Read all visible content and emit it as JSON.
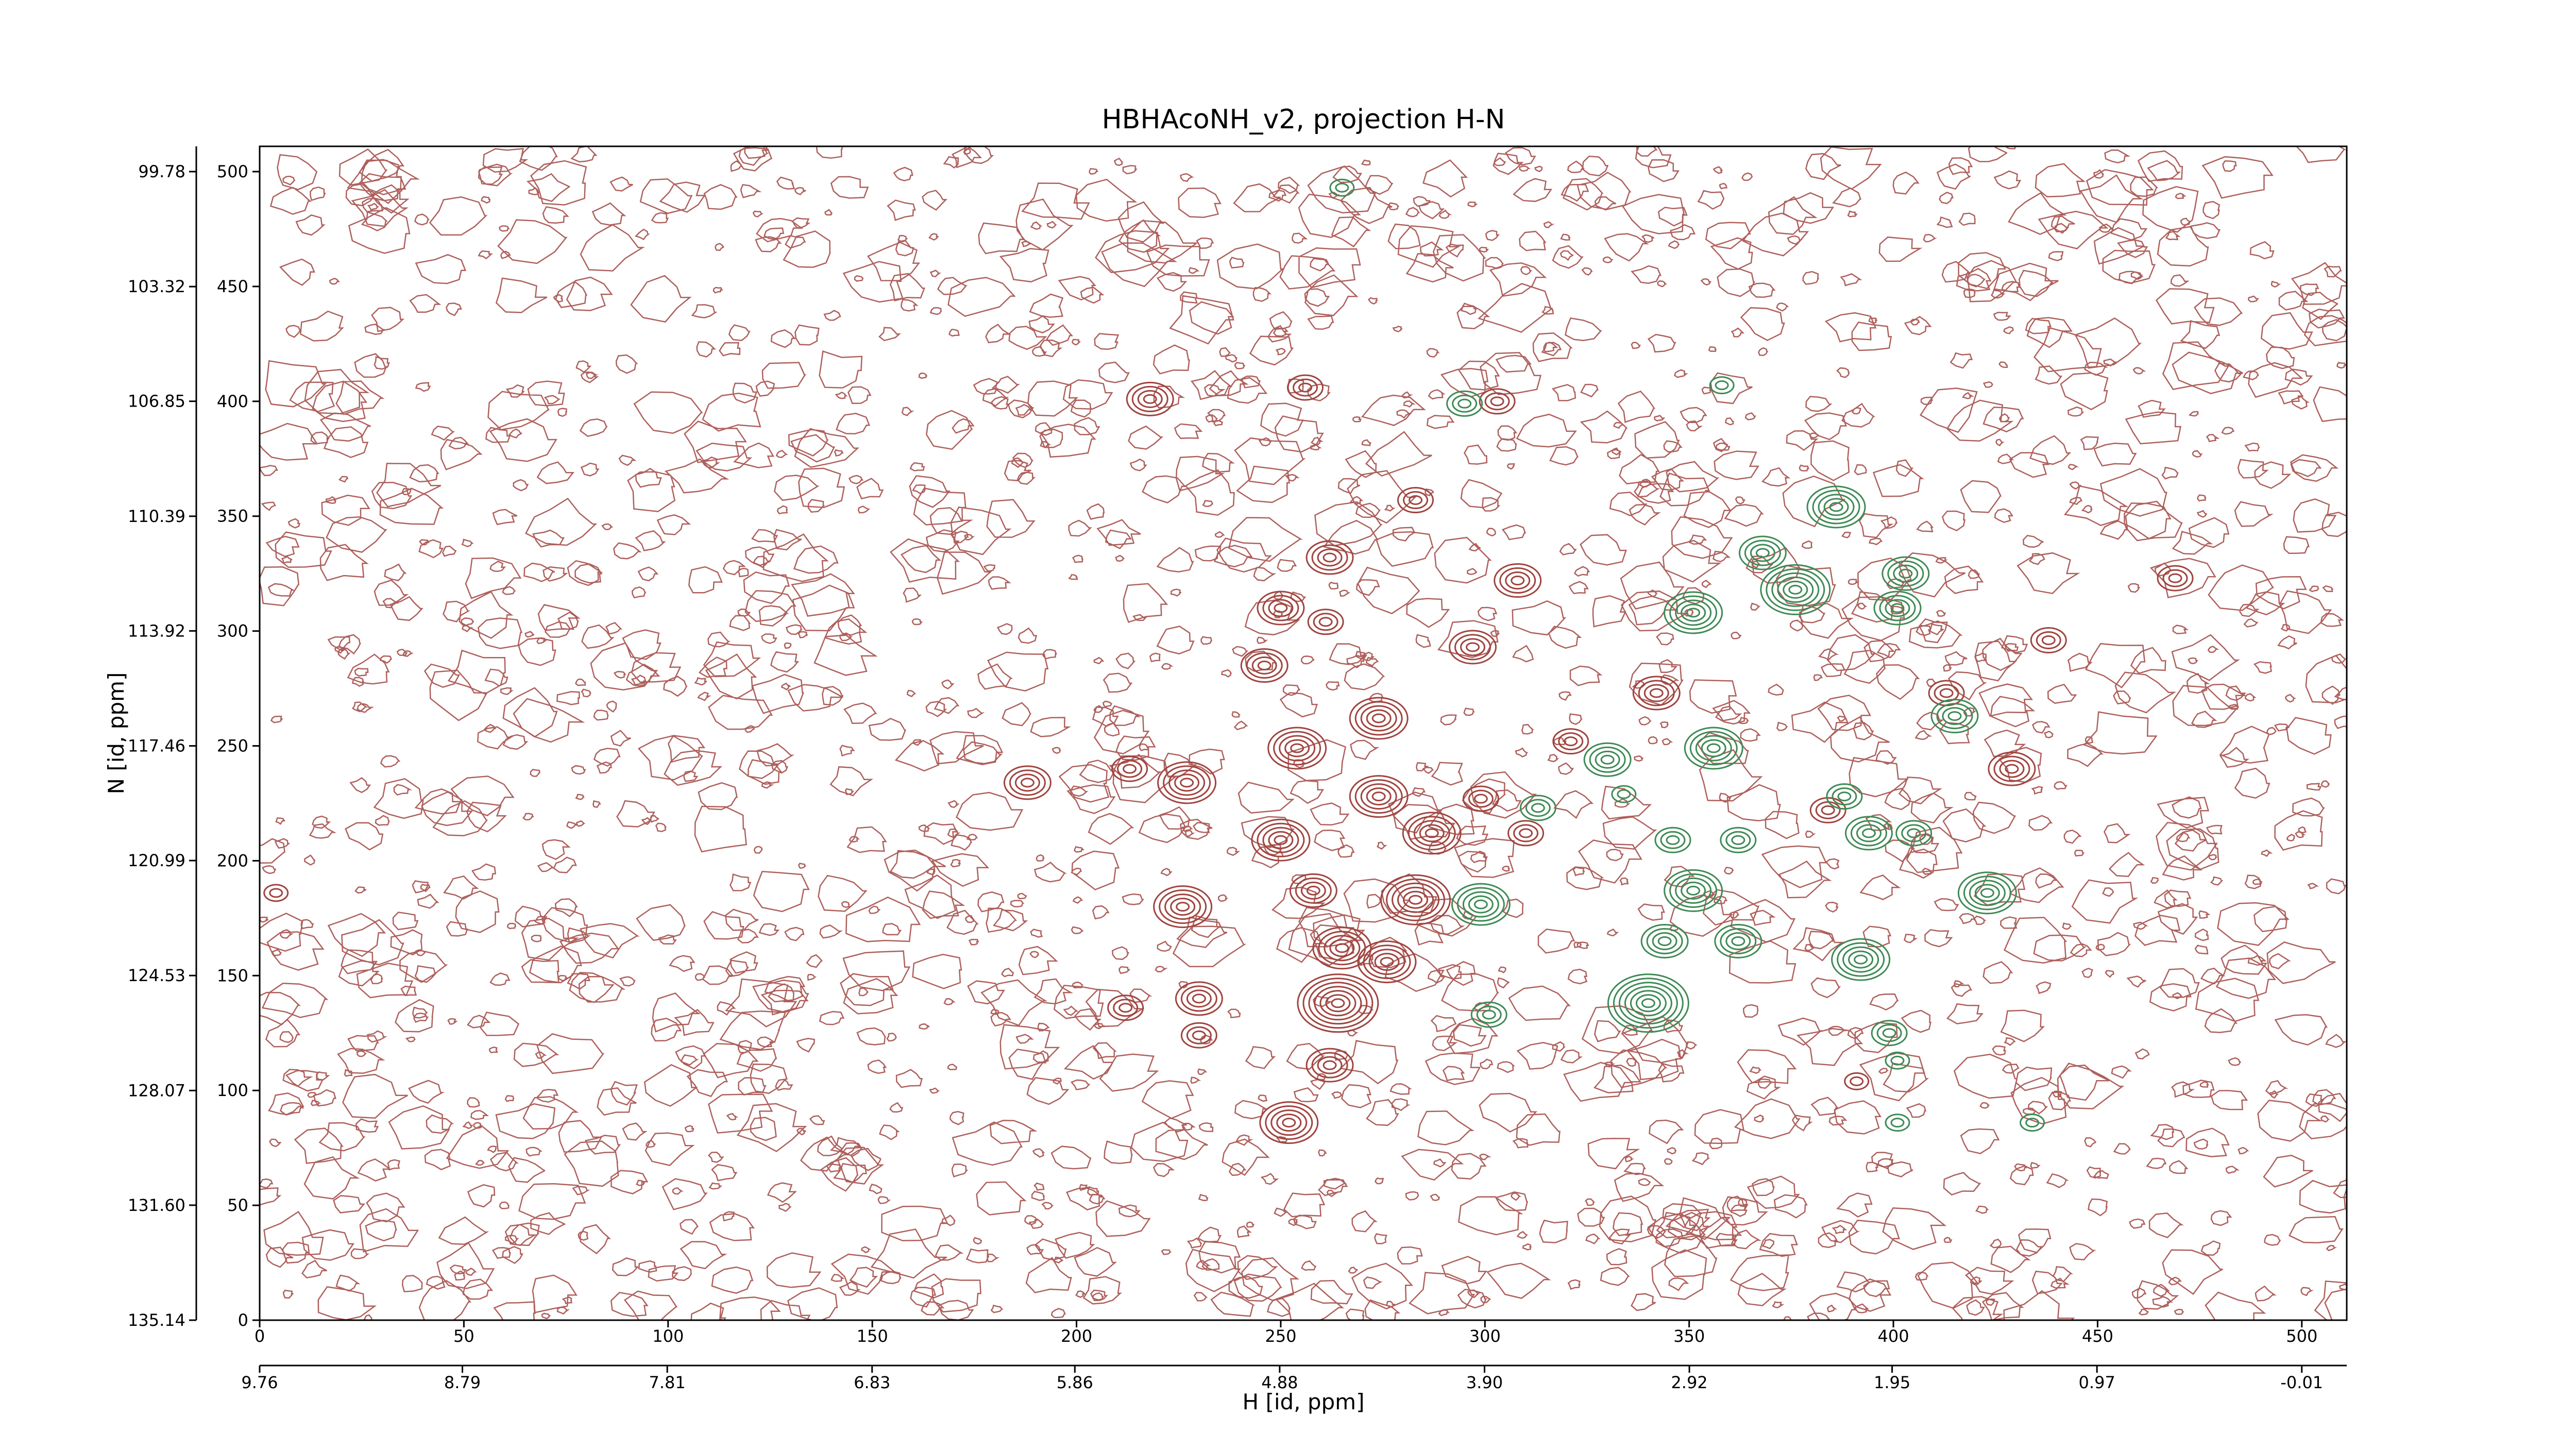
{
  "chart_data": {
    "type": "contour",
    "title": "HBHAcoNH_v2, projection H-N",
    "x_label": "H [id, ppm]",
    "y_label": "N [id, ppm]",
    "xlim": [
      0,
      511
    ],
    "xticks": [
      0,
      50,
      100,
      150,
      200,
      250,
      300,
      350,
      400,
      450,
      500
    ],
    "ylim": [
      0,
      511
    ],
    "yticks": [
      0,
      50,
      100,
      150,
      200,
      250,
      300,
      350,
      400,
      450,
      500
    ],
    "x2lim": [
      9.76,
      -0.225
    ],
    "x2ticks": [
      9.76,
      8.79,
      7.81,
      6.83,
      5.86,
      4.88,
      {
        "value": 3.9,
        "label": "3.90"
      },
      2.92,
      1.95,
      0.97,
      -0.01
    ],
    "y2lim": [
      135.14,
      99.002
    ],
    "y2ticks": [
      135.14,
      {
        "value": 131.6,
        "label": "131.60"
      },
      128.07,
      124.53,
      120.99,
      117.46,
      113.92,
      110.39,
      106.85,
      103.32,
      99.78
    ],
    "series": [
      {
        "color": "#a0443f",
        "x": [
          218,
          256,
          303,
          283,
          262,
          308,
          250,
          261,
          297,
          246,
          469,
          438,
          342,
          274,
          321,
          254,
          188,
          213,
          227,
          274,
          299,
          429,
          287,
          250,
          310,
          226,
          258,
          283,
          265,
          276,
          212,
          230,
          264,
          230,
          262,
          252,
          391,
          413,
          384,
          4
        ],
        "y": [
          401,
          406,
          400,
          357,
          332,
          322,
          310,
          304,
          293,
          285,
          323,
          296,
          273,
          262,
          252,
          249,
          234,
          240,
          234,
          228,
          227,
          240,
          212,
          209,
          212,
          180,
          187,
          183,
          162,
          156,
          136,
          140,
          138,
          124,
          111,
          86,
          104,
          273,
          222,
          186
        ],
        "levels": [
          4,
          3,
          3,
          3,
          4,
          4,
          4,
          3,
          4,
          4,
          3,
          3,
          4,
          5,
          3,
          5,
          4,
          3,
          5,
          5,
          3,
          4,
          5,
          5,
          3,
          5,
          4,
          6,
          5,
          5,
          3,
          4,
          7,
          3,
          4,
          5,
          2,
          3,
          3,
          2
        ]
      },
      {
        "color": "#3e8a55",
        "x": [
          295,
          265,
          358,
          376,
          386,
          351,
          368,
          403,
          401,
          356,
          330,
          415,
          388,
          394,
          405,
          362,
          346,
          313,
          299,
          351,
          423,
          344,
          362,
          392,
          340,
          301,
          399,
          401,
          401,
          434,
          334
        ],
        "y": [
          399,
          493,
          407,
          318,
          354,
          308,
          334,
          325,
          310,
          249,
          244,
          263,
          228,
          212,
          212,
          209,
          209,
          223,
          181,
          187,
          186,
          165,
          165,
          157,
          138,
          133,
          125,
          113,
          86,
          86,
          229
        ],
        "levels": [
          3,
          2,
          2,
          6,
          5,
          5,
          4,
          4,
          4,
          5,
          4,
          4,
          3,
          4,
          3,
          3,
          3,
          3,
          5,
          5,
          5,
          4,
          4,
          5,
          7,
          3,
          3,
          2,
          2,
          2,
          2
        ]
      }
    ]
  }
}
